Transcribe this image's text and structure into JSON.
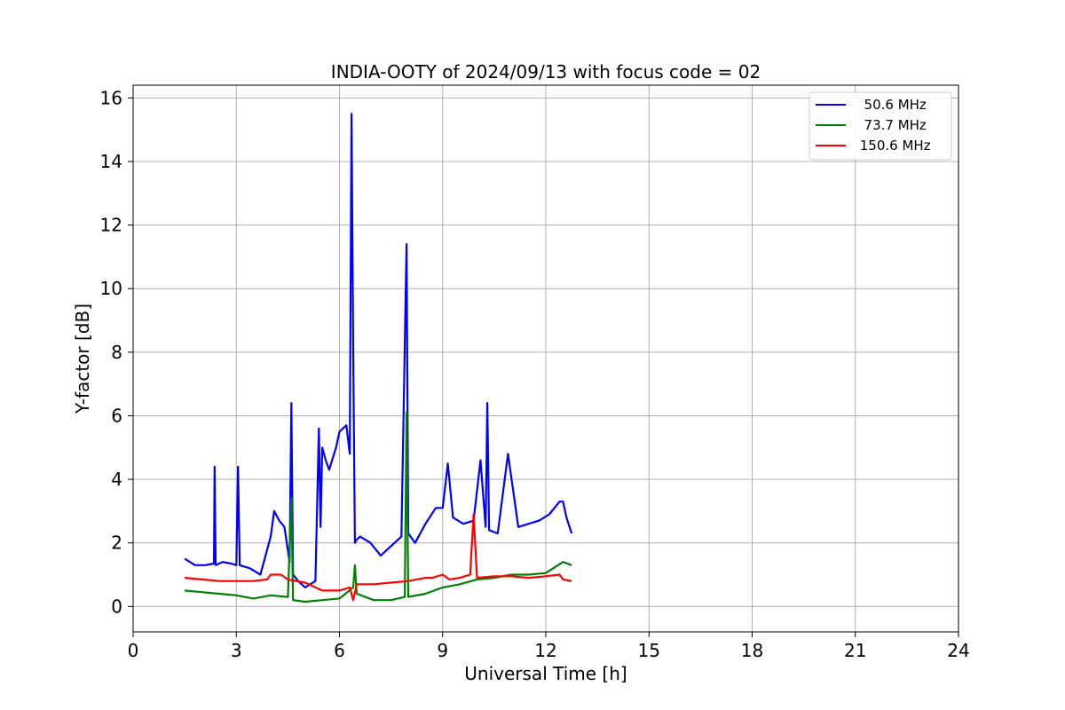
{
  "chart_data": {
    "type": "line",
    "title": "INDIA-OOTY of 2024/09/13 with focus code = 02",
    "xlabel": "Universal Time [h]",
    "ylabel": "Y-factor [dB]",
    "xlim": [
      0,
      24
    ],
    "ylim": [
      -0.8,
      16.4
    ],
    "xticks": [
      0,
      3,
      6,
      9,
      12,
      15,
      18,
      21,
      24
    ],
    "yticks": [
      0,
      2,
      4,
      6,
      8,
      10,
      12,
      14,
      16
    ],
    "grid": true,
    "legend_position": "top-right",
    "series": [
      {
        "name": "  50.6 MHz",
        "color": "#0000ff",
        "x": [
          1.5,
          1.8,
          2.1,
          2.35,
          2.37,
          2.4,
          2.6,
          2.85,
          3.0,
          3.05,
          3.1,
          3.4,
          3.7,
          4.0,
          4.1,
          4.25,
          4.4,
          4.55,
          4.6,
          4.65,
          4.8,
          5.0,
          5.3,
          5.4,
          5.45,
          5.5,
          5.6,
          5.7,
          5.9,
          6.0,
          6.2,
          6.3,
          6.35,
          6.4,
          6.45,
          6.5,
          6.6,
          6.9,
          7.2,
          7.5,
          7.8,
          7.95,
          8.0,
          8.2,
          8.5,
          8.8,
          9.0,
          9.15,
          9.3,
          9.6,
          9.9,
          10.1,
          10.25,
          10.3,
          10.35,
          10.6,
          10.9,
          11.2,
          11.5,
          11.8,
          12.1,
          12.4,
          12.5,
          12.6,
          12.75
        ],
        "values": [
          1.5,
          1.3,
          1.3,
          1.35,
          4.4,
          1.3,
          1.4,
          1.35,
          1.3,
          4.4,
          1.3,
          1.2,
          1.0,
          2.2,
          3.0,
          2.7,
          2.5,
          1.4,
          6.4,
          1.0,
          0.8,
          0.6,
          0.8,
          5.6,
          2.5,
          5.0,
          4.6,
          4.3,
          5.0,
          5.5,
          5.7,
          4.8,
          15.5,
          8.0,
          2.0,
          2.1,
          2.2,
          2.0,
          1.6,
          1.9,
          2.2,
          11.4,
          2.3,
          2.0,
          2.6,
          3.1,
          3.1,
          4.5,
          2.8,
          2.6,
          2.7,
          4.6,
          2.5,
          6.4,
          2.4,
          2.3,
          4.8,
          2.5,
          2.6,
          2.7,
          2.9,
          3.3,
          3.3,
          2.8,
          2.3
        ]
      },
      {
        "name": "  73.7 MHz",
        "color": "#008000",
        "x": [
          1.5,
          2.0,
          2.5,
          3.0,
          3.5,
          4.0,
          4.5,
          4.6,
          4.65,
          5.0,
          5.5,
          6.0,
          6.4,
          6.45,
          6.5,
          7.0,
          7.5,
          7.9,
          7.95,
          8.0,
          8.5,
          9.0,
          9.5,
          10.0,
          10.5,
          11.0,
          11.5,
          12.0,
          12.5,
          12.75
        ],
        "values": [
          0.5,
          0.45,
          0.4,
          0.35,
          0.25,
          0.35,
          0.3,
          3.4,
          0.2,
          0.15,
          0.2,
          0.25,
          0.6,
          1.3,
          0.4,
          0.2,
          0.2,
          0.3,
          6.1,
          0.3,
          0.4,
          0.6,
          0.7,
          0.85,
          0.9,
          1.0,
          1.0,
          1.05,
          1.4,
          1.3
        ]
      },
      {
        "name": " 150.6 MHz",
        "color": "#ff0000",
        "x": [
          1.5,
          2.0,
          2.5,
          3.0,
          3.5,
          3.9,
          4.0,
          4.3,
          4.5,
          5.0,
          5.5,
          6.0,
          6.3,
          6.4,
          6.5,
          7.0,
          7.5,
          8.0,
          8.5,
          8.7,
          9.0,
          9.2,
          9.5,
          9.8,
          9.9,
          10.0,
          10.5,
          11.0,
          11.5,
          12.0,
          12.4,
          12.5,
          12.75
        ],
        "values": [
          0.9,
          0.85,
          0.8,
          0.8,
          0.8,
          0.85,
          1.0,
          1.0,
          0.85,
          0.75,
          0.5,
          0.5,
          0.6,
          0.2,
          0.7,
          0.7,
          0.75,
          0.8,
          0.9,
          0.9,
          1.0,
          0.85,
          0.9,
          1.0,
          2.9,
          0.9,
          0.95,
          0.95,
          0.9,
          0.95,
          1.0,
          0.85,
          0.8
        ]
      }
    ]
  }
}
